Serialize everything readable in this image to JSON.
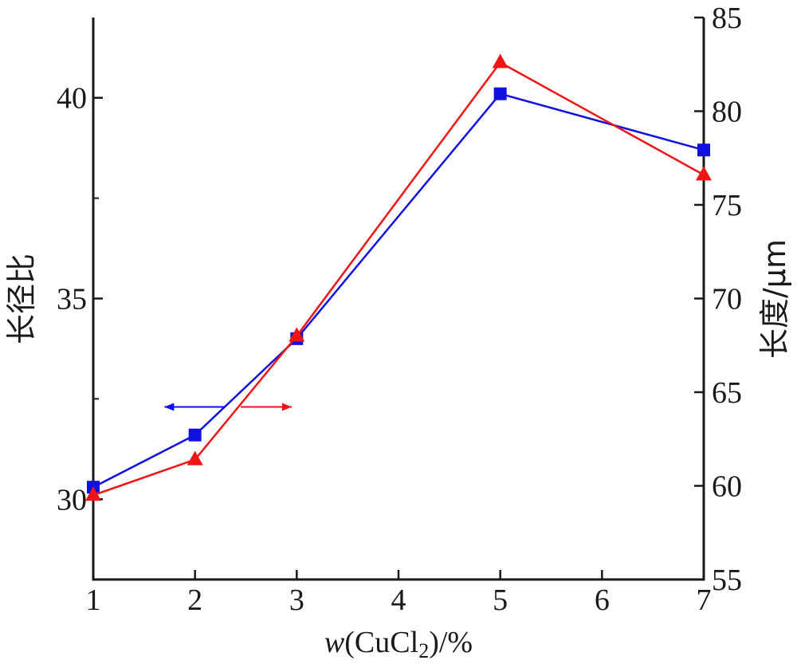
{
  "chart_data": {
    "type": "line",
    "title": "",
    "xlabel": {
      "prefix": "w",
      "open": "(CuCl",
      "sub": "2",
      "close": ")/%"
    },
    "ylabel_left": "长径比",
    "ylabel_right": "长度/μm",
    "xlim": [
      1,
      7
    ],
    "ylim_left": [
      28,
      42
    ],
    "ylim_right": [
      55,
      85
    ],
    "x_ticks": [
      1,
      2,
      3,
      4,
      5,
      6,
      7
    ],
    "y_left_ticks": [
      30,
      35,
      40
    ],
    "y_left_minor_ticks": [
      32.5,
      37.5
    ],
    "y_right_ticks": [
      55,
      60,
      65,
      70,
      75,
      80,
      85
    ],
    "grid": false,
    "legend": "none",
    "series": [
      {
        "axis": "left",
        "color": "#1010e0",
        "marker": "square",
        "x": [
          1,
          2,
          3,
          5,
          7
        ],
        "values": [
          30.3,
          31.6,
          34.0,
          40.1,
          38.7
        ]
      },
      {
        "axis": "right",
        "color": "#f01414",
        "marker": "triangle",
        "x": [
          1,
          2,
          3,
          5,
          7
        ],
        "values": [
          59.5,
          61.4,
          68.0,
          82.6,
          76.6
        ]
      }
    ],
    "annotations": [
      {
        "type": "arrow",
        "direction": "left",
        "color": "#1010e0",
        "x_from": 2.3,
        "x_to": 1.7,
        "y_left": 32.3
      },
      {
        "type": "arrow",
        "direction": "right",
        "color": "#f01414",
        "x_from": 2.45,
        "x_to": 2.95,
        "y_left": 32.3
      }
    ]
  }
}
